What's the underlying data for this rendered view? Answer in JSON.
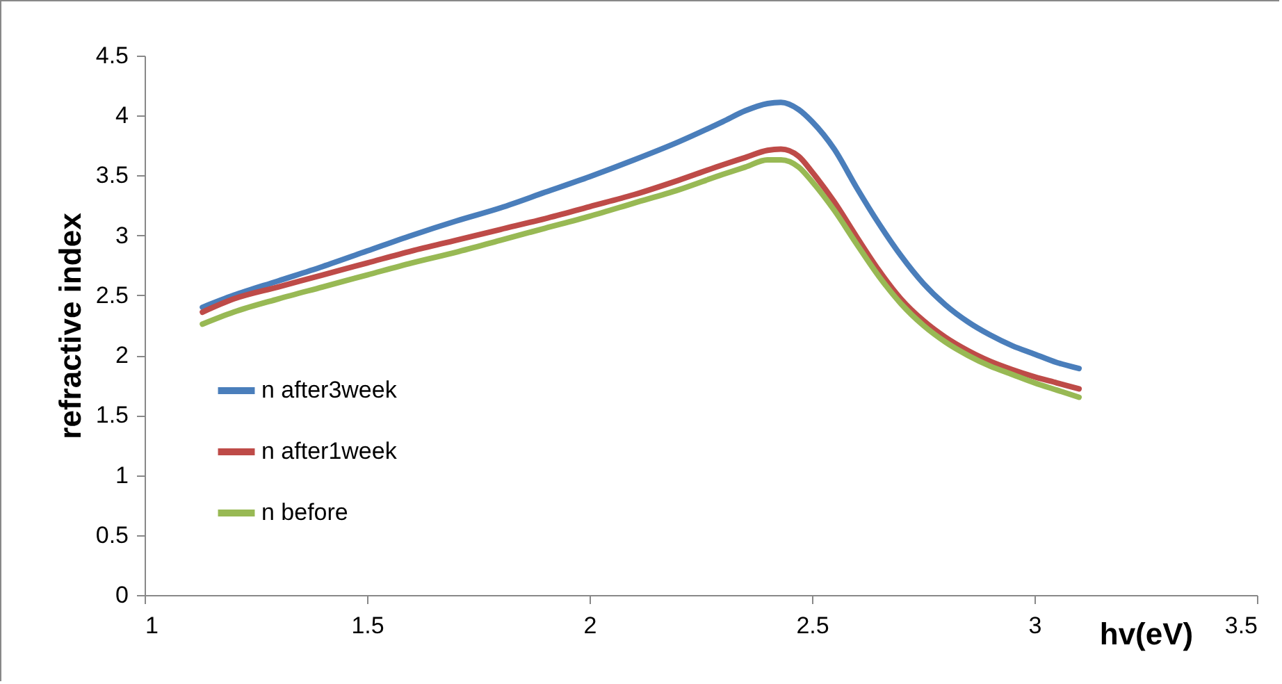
{
  "chart_data": {
    "type": "line",
    "xlabel": "hv(eV)",
    "ylabel": "refractive index",
    "xlim": [
      1,
      3.5
    ],
    "xticks": [
      1,
      1.5,
      2,
      2.5,
      3,
      3.5
    ],
    "ylim": [
      0,
      4.5
    ],
    "yticks": [
      0,
      0.5,
      1,
      1.5,
      2,
      2.5,
      3,
      3.5,
      4,
      4.5
    ],
    "grid": false,
    "legend": "left",
    "marker": "none",
    "line_style": "solid",
    "x": [
      1.13,
      1.2,
      1.3,
      1.4,
      1.5,
      1.6,
      1.7,
      1.8,
      1.9,
      2.0,
      2.1,
      2.2,
      2.3,
      2.35,
      2.4,
      2.43,
      2.47,
      2.5,
      2.55,
      2.6,
      2.65,
      2.7,
      2.75,
      2.8,
      2.85,
      2.9,
      2.95,
      3.0,
      3.05,
      3.1
    ],
    "series": [
      {
        "name": "n after3week",
        "color": "#4a7ebb",
        "values": [
          2.4,
          2.5,
          2.62,
          2.74,
          2.87,
          3.0,
          3.12,
          3.23,
          3.36,
          3.49,
          3.63,
          3.78,
          3.95,
          4.04,
          4.1,
          4.11,
          4.05,
          3.95,
          3.72,
          3.4,
          3.1,
          2.83,
          2.6,
          2.42,
          2.28,
          2.17,
          2.08,
          2.01,
          1.94,
          1.89
        ]
      },
      {
        "name": "n after1week",
        "color": "#be4b48",
        "values": [
          2.36,
          2.47,
          2.57,
          2.67,
          2.77,
          2.87,
          2.96,
          3.05,
          3.14,
          3.24,
          3.34,
          3.46,
          3.59,
          3.65,
          3.71,
          3.72,
          3.66,
          3.53,
          3.28,
          2.99,
          2.71,
          2.47,
          2.29,
          2.15,
          2.04,
          1.95,
          1.88,
          1.82,
          1.77,
          1.72
        ]
      },
      {
        "name": "n before",
        "color": "#98b954",
        "values": [
          2.26,
          2.36,
          2.47,
          2.57,
          2.67,
          2.77,
          2.86,
          2.96,
          3.06,
          3.16,
          3.27,
          3.38,
          3.51,
          3.57,
          3.63,
          3.63,
          3.57,
          3.45,
          3.21,
          2.93,
          2.66,
          2.43,
          2.25,
          2.11,
          2.0,
          1.91,
          1.84,
          1.77,
          1.71,
          1.65
        ]
      }
    ]
  }
}
